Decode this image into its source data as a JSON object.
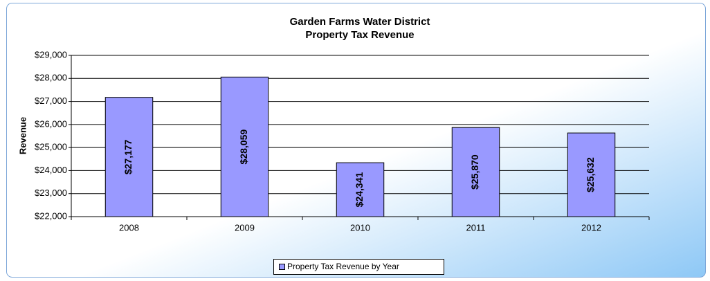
{
  "chart_data": {
    "type": "bar",
    "title": "Garden Farms Water District",
    "subtitle": "Property Tax Revenue",
    "y_label": "Revenue",
    "categories": [
      "2008",
      "2009",
      "2010",
      "2011",
      "2012"
    ],
    "series": [
      {
        "name": "Property Tax Revenue by Year",
        "color": "#9999ff",
        "values": [
          27177,
          28059,
          24341,
          25870,
          25632
        ],
        "value_labels": [
          "$27,177",
          "$28,059",
          "$24,341",
          "$25,870",
          "$25,632"
        ]
      }
    ],
    "ylim": [
      22000,
      29000
    ],
    "yticks": [
      {
        "value": 22000,
        "label": "$22,000"
      },
      {
        "value": 23000,
        "label": "$23,000"
      },
      {
        "value": 24000,
        "label": "$24,000"
      },
      {
        "value": 25000,
        "label": "$25,000"
      },
      {
        "value": 26000,
        "label": "$26,000"
      },
      {
        "value": 27000,
        "label": "$27,000"
      },
      {
        "value": 28000,
        "label": "$28,000"
      },
      {
        "value": 29000,
        "label": "$29,000"
      }
    ],
    "grid": true,
    "legend": "bottom"
  }
}
